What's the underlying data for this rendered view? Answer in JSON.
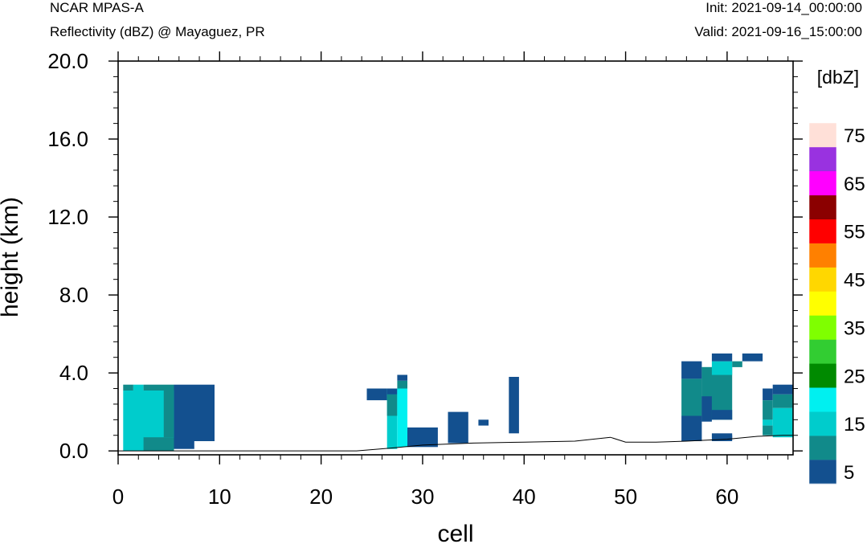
{
  "header": {
    "model": "NCAR MPAS-A",
    "description": "Reflectivity (dBZ) @ Mayaguez, PR",
    "init": "Init: 2021-09-14_00:00:00",
    "valid": "Valid: 2021-09-16_15:00:00"
  },
  "chart_data": {
    "type": "heatmap",
    "xlabel": "cell",
    "ylabel": "height (km)",
    "xlim": [
      0,
      66.5
    ],
    "ylim": [
      -0.2,
      20.0
    ],
    "x_ticks": [
      "0",
      "10",
      "20",
      "30",
      "40",
      "50",
      "60"
    ],
    "y_ticks": [
      "0.0",
      "4.0",
      "8.0",
      "12.0",
      "16.0",
      "20.0"
    ],
    "grid": false,
    "colorbar": {
      "title": "[dbZ]",
      "tick_labels": [
        "5",
        "15",
        "25",
        "35",
        "45",
        "55",
        "65",
        "75"
      ],
      "levels": [
        5,
        10,
        15,
        20,
        25,
        30,
        35,
        40,
        45,
        50,
        55,
        60,
        65,
        70,
        75
      ],
      "colors": [
        "#13508f",
        "#118a8a",
        "#00cccc",
        "#00f0f0",
        "#008a00",
        "#32cd32",
        "#7fff00",
        "#ffff00",
        "#ffd700",
        "#ff8000",
        "#ff0000",
        "#8b0000",
        "#ff00ff",
        "#9932e0",
        "#ffe0d8"
      ]
    },
    "cells": [
      {
        "x": [
          0.5,
          1.5
        ],
        "y": [
          3.1,
          3.4
        ],
        "dbz": 10
      },
      {
        "x": [
          0.5,
          5.5
        ],
        "y": [
          0.0,
          3.1
        ],
        "dbz": 15
      },
      {
        "x": [
          1.5,
          2.5
        ],
        "y": [
          3.1,
          3.4
        ],
        "dbz": 15
      },
      {
        "x": [
          2.5,
          5.5
        ],
        "y": [
          3.1,
          3.4
        ],
        "dbz": 10
      },
      {
        "x": [
          4.5,
          5.5
        ],
        "y": [
          0.7,
          3.1
        ],
        "dbz": 10
      },
      {
        "x": [
          2.5,
          5.5
        ],
        "y": [
          0.0,
          0.7
        ],
        "dbz": 10
      },
      {
        "x": [
          5.5,
          9.5
        ],
        "y": [
          0.5,
          3.4
        ],
        "dbz": 5
      },
      {
        "x": [
          5.5,
          7.5
        ],
        "y": [
          0.1,
          0.5
        ],
        "dbz": 5
      },
      {
        "x": [
          24.5,
          26.5
        ],
        "y": [
          2.6,
          3.2
        ],
        "dbz": 5
      },
      {
        "x": [
          26.5,
          27.5
        ],
        "y": [
          0.1,
          3.2
        ],
        "dbz": 15
      },
      {
        "x": [
          26.5,
          27.5
        ],
        "y": [
          1.8,
          2.9
        ],
        "dbz": 10
      },
      {
        "x": [
          26.5,
          27.5
        ],
        "y": [
          2.9,
          3.2
        ],
        "dbz": 5
      },
      {
        "x": [
          27.5,
          28.5
        ],
        "y": [
          0.2,
          3.2
        ],
        "dbz": 20
      },
      {
        "x": [
          27.5,
          28.5
        ],
        "y": [
          3.2,
          3.6
        ],
        "dbz": 10
      },
      {
        "x": [
          27.5,
          28.5
        ],
        "y": [
          3.6,
          3.9
        ],
        "dbz": 5
      },
      {
        "x": [
          28.5,
          31.5
        ],
        "y": [
          0.2,
          1.2
        ],
        "dbz": 5
      },
      {
        "x": [
          32.5,
          34.5
        ],
        "y": [
          0.4,
          2.0
        ],
        "dbz": 5
      },
      {
        "x": [
          35.5,
          36.5
        ],
        "y": [
          1.3,
          1.6
        ],
        "dbz": 5
      },
      {
        "x": [
          38.5,
          39.5
        ],
        "y": [
          0.9,
          3.8
        ],
        "dbz": 5
      },
      {
        "x": [
          55.5,
          57.5
        ],
        "y": [
          3.7,
          4.6
        ],
        "dbz": 5
      },
      {
        "x": [
          55.5,
          57.5
        ],
        "y": [
          1.8,
          3.7
        ],
        "dbz": 10
      },
      {
        "x": [
          55.5,
          57.5
        ],
        "y": [
          0.5,
          1.8
        ],
        "dbz": 5
      },
      {
        "x": [
          57.5,
          60.5
        ],
        "y": [
          1.6,
          4.3
        ],
        "dbz": 10
      },
      {
        "x": [
          57.5,
          58.5
        ],
        "y": [
          1.5,
          2.8
        ],
        "dbz": 5
      },
      {
        "x": [
          58.5,
          60.5
        ],
        "y": [
          3.9,
          4.6
        ],
        "dbz": 15
      },
      {
        "x": [
          58.5,
          60.5
        ],
        "y": [
          4.6,
          5.0
        ],
        "dbz": 5
      },
      {
        "x": [
          58.5,
          60.5
        ],
        "y": [
          1.6,
          2.1
        ],
        "dbz": 5
      },
      {
        "x": [
          60.5,
          61.5
        ],
        "y": [
          4.3,
          4.6
        ],
        "dbz": 10
      },
      {
        "x": [
          59.5,
          60.5
        ],
        "y": [
          0.6,
          0.8
        ],
        "dbz": 5
      },
      {
        "x": [
          58.5,
          60.5
        ],
        "y": [
          0.5,
          0.9
        ],
        "dbz": 5
      },
      {
        "x": [
          61.5,
          63.5
        ],
        "y": [
          4.6,
          5.0
        ],
        "dbz": 5
      },
      {
        "x": [
          63.5,
          64.5
        ],
        "y": [
          2.6,
          3.2
        ],
        "dbz": 5
      },
      {
        "x": [
          63.5,
          64.5
        ],
        "y": [
          1.6,
          2.6
        ],
        "dbz": 10
      },
      {
        "x": [
          63.5,
          64.5
        ],
        "y": [
          1.3,
          1.6
        ],
        "dbz": 15
      },
      {
        "x": [
          63.5,
          64.5
        ],
        "y": [
          0.8,
          1.3
        ],
        "dbz": 10
      },
      {
        "x": [
          64.5,
          66.5
        ],
        "y": [
          2.9,
          3.4
        ],
        "dbz": 5
      },
      {
        "x": [
          64.5,
          66.5
        ],
        "y": [
          2.2,
          2.9
        ],
        "dbz": 10
      },
      {
        "x": [
          64.5,
          66.5
        ],
        "y": [
          0.7,
          2.2
        ],
        "dbz": 15
      }
    ],
    "terrain": {
      "x": [
        0,
        23.5,
        27,
        30,
        35,
        40,
        45,
        48.5,
        50,
        53,
        56,
        60,
        63,
        65.5,
        66.5
      ],
      "y": [
        0.0,
        0.0,
        0.15,
        0.3,
        0.4,
        0.45,
        0.5,
        0.7,
        0.45,
        0.45,
        0.5,
        0.6,
        0.75,
        0.8,
        0.8
      ]
    }
  }
}
